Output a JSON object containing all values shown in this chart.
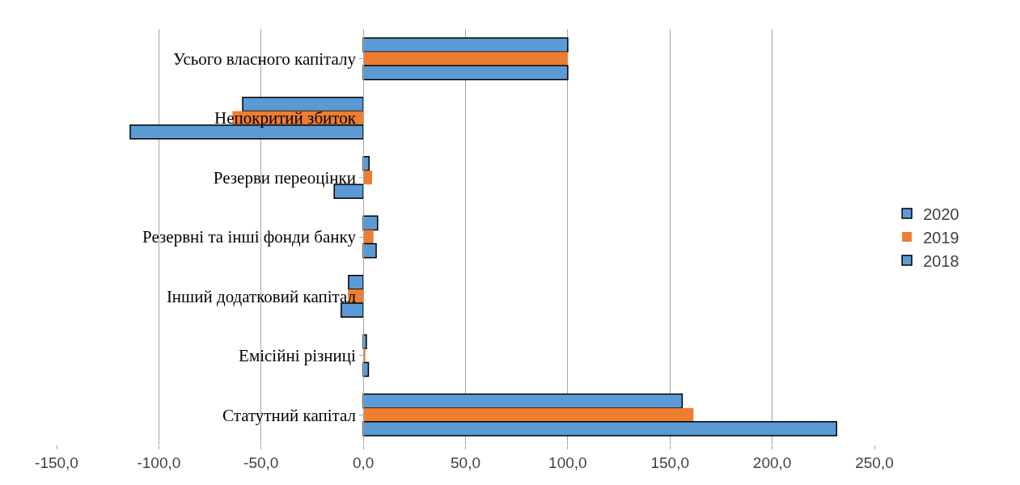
{
  "chart_data": {
    "type": "bar",
    "orientation": "horizontal",
    "categories": [
      "Усього власного капіталу",
      "Непокритий збиток",
      "Резерви переоцінки",
      "Резервні та інші фонди банку",
      "Інший додатковий капітал",
      "Емісійні різниці",
      "Статутний капітал"
    ],
    "series": [
      {
        "name": "2020",
        "color": "#5b9bd5",
        "values": [
          100,
          -59,
          2.8,
          7,
          -7.2,
          1.5,
          156
        ]
      },
      {
        "name": "2019",
        "color": "#ed7d31",
        "values": [
          100,
          -64,
          4.3,
          5,
          -7.5,
          1,
          161.5
        ]
      },
      {
        "name": "2018",
        "color": "#5b9bd5",
        "values": [
          100,
          -114,
          -14.2,
          6.3,
          -10.8,
          2.5,
          231.5
        ]
      }
    ],
    "xlim": [
      -150,
      250
    ],
    "xticks": [
      {
        "value": -150,
        "label": "-150,0"
      },
      {
        "value": -100,
        "label": "-100,0"
      },
      {
        "value": -50,
        "label": "-50,0"
      },
      {
        "value": 0,
        "label": "0,0"
      },
      {
        "value": 50,
        "label": "50,0"
      },
      {
        "value": 100,
        "label": "100,0"
      },
      {
        "value": 150,
        "label": "150,0"
      },
      {
        "value": 200,
        "label": "200,0"
      },
      {
        "value": 250,
        "label": "250,0"
      }
    ],
    "grid": "x",
    "legend": "right"
  }
}
